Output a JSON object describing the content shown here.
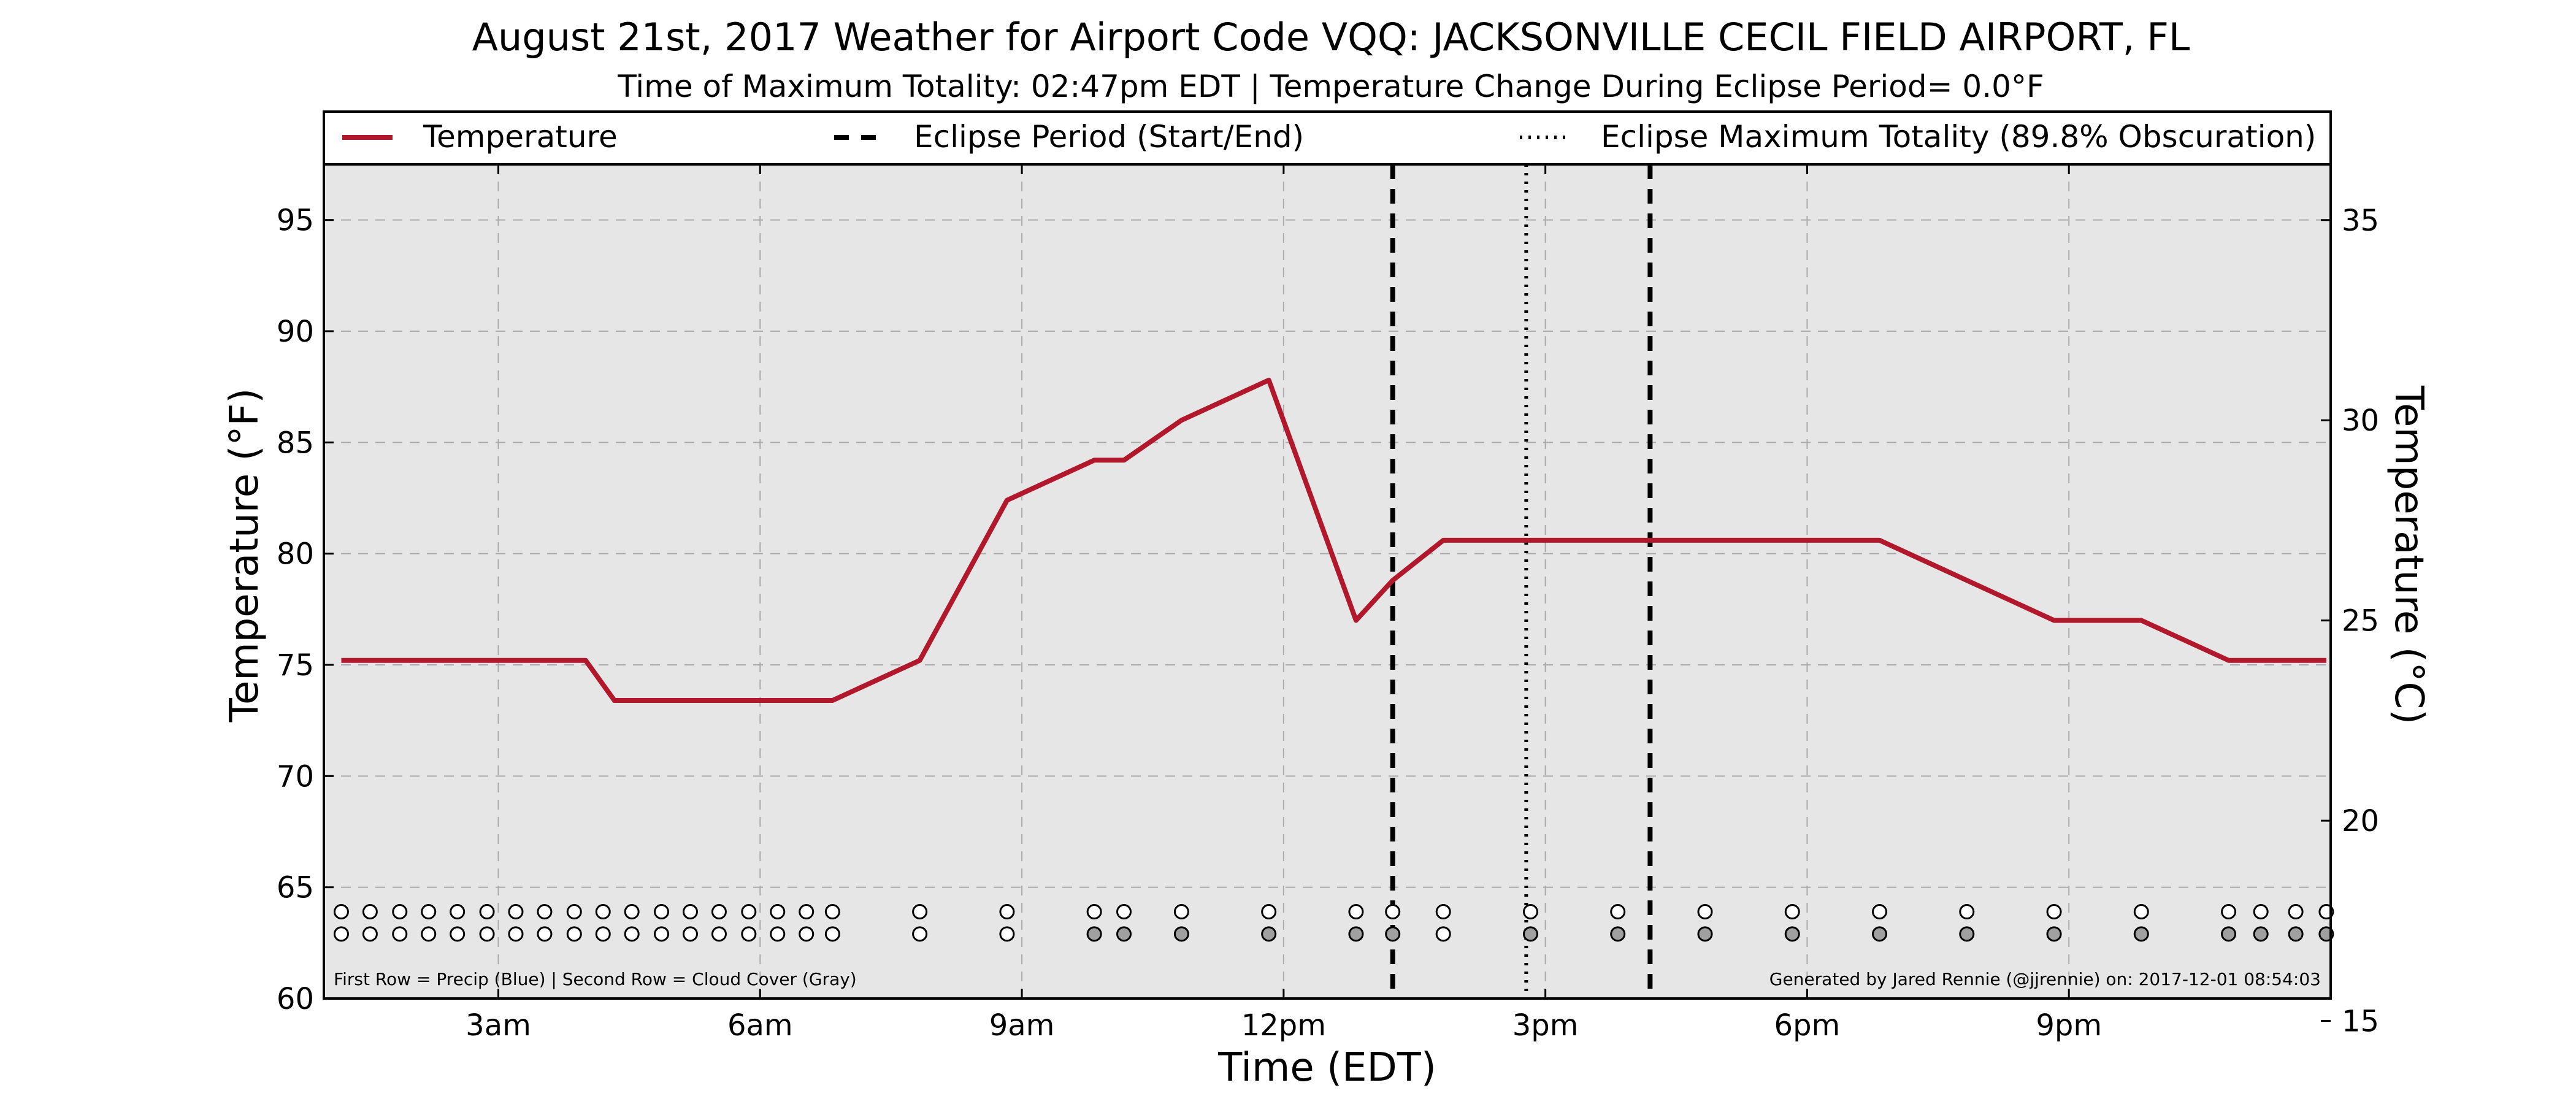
{
  "chart_data": {
    "type": "line",
    "title": "August 21st, 2017 Weather for Airport Code VQQ: JACKSONVILLE CECIL FIELD AIRPORT, FL",
    "subtitle": "Time of Maximum Totality: 02:47pm EDT | Temperature Change During Eclipse Period= 0.0°F",
    "xlabel": "Time (EDT)",
    "ylabel": "Temperature (°F)",
    "ylabel_right": "Temperature (°C)",
    "xlim": [
      1.0,
      24.0
    ],
    "ylim": [
      60,
      97.5
    ],
    "ylim_right": [
      15.56,
      36.39
    ],
    "x_ticks": [
      {
        "value": 3,
        "label": "3am"
      },
      {
        "value": 6,
        "label": "6am"
      },
      {
        "value": 9,
        "label": "9am"
      },
      {
        "value": 12,
        "label": "12pm"
      },
      {
        "value": 15,
        "label": "3pm"
      },
      {
        "value": 18,
        "label": "6pm"
      },
      {
        "value": 21,
        "label": "9pm"
      }
    ],
    "y_ticks": [
      60,
      65,
      70,
      75,
      80,
      85,
      90,
      95
    ],
    "y_ticks_right": [
      15,
      20,
      25,
      30,
      35
    ],
    "grid": true,
    "legend": {
      "placement": "top",
      "entries": [
        {
          "label": "Temperature",
          "style": "solid"
        },
        {
          "label": "Eclipse Period (Start/End)",
          "style": "dashed"
        },
        {
          "label": "Eclipse Maximum Totality (89.8% Obscuration)",
          "style": "dotted"
        }
      ]
    },
    "series": [
      {
        "name": "Temperature",
        "color": "#b2182b",
        "points": [
          [
            1.2,
            75.2
          ],
          [
            4.0,
            75.2
          ],
          [
            4.33,
            73.4
          ],
          [
            6.83,
            73.4
          ],
          [
            7.83,
            75.2
          ],
          [
            8.83,
            82.4
          ],
          [
            9.83,
            84.2
          ],
          [
            10.17,
            84.2
          ],
          [
            10.83,
            86.0
          ],
          [
            11.83,
            87.8
          ],
          [
            12.83,
            77.0
          ],
          [
            13.25,
            78.8
          ],
          [
            13.83,
            80.6
          ],
          [
            14.83,
            80.6
          ],
          [
            15.83,
            80.6
          ],
          [
            16.83,
            80.6
          ],
          [
            17.83,
            80.6
          ],
          [
            18.83,
            80.6
          ],
          [
            19.83,
            78.8
          ],
          [
            20.83,
            77.0
          ],
          [
            21.83,
            77.0
          ],
          [
            22.83,
            75.2
          ],
          [
            23.2,
            75.2
          ],
          [
            23.6,
            75.2
          ],
          [
            23.95,
            75.2
          ]
        ]
      }
    ],
    "eclipse_period": [
      13.25,
      16.2
    ],
    "eclipse_max": 14.78,
    "marker_colors": {
      "clear": "#ffffff",
      "cloud": "#a0a0a0",
      "edge": "#000000"
    },
    "precip_row": {
      "y": 63.9,
      "x": [
        1.2,
        1.53,
        1.87,
        2.2,
        2.53,
        2.87,
        3.2,
        3.53,
        3.87,
        4.2,
        4.53,
        4.87,
        5.2,
        5.53,
        5.87,
        6.2,
        6.53,
        6.83,
        7.83,
        8.83,
        9.83,
        10.17,
        10.83,
        11.83,
        12.83,
        13.25,
        13.83,
        14.83,
        15.83,
        16.83,
        17.83,
        18.83,
        19.83,
        20.83,
        21.83,
        22.83,
        23.2,
        23.6,
        23.95
      ],
      "values": [
        "clear",
        "clear",
        "clear",
        "clear",
        "clear",
        "clear",
        "clear",
        "clear",
        "clear",
        "clear",
        "clear",
        "clear",
        "clear",
        "clear",
        "clear",
        "clear",
        "clear",
        "clear",
        "clear",
        "clear",
        "clear",
        "clear",
        "clear",
        "clear",
        "clear",
        "clear",
        "clear",
        "clear",
        "clear",
        "clear",
        "clear",
        "clear",
        "clear",
        "clear",
        "clear",
        "clear",
        "clear",
        "clear",
        "clear"
      ]
    },
    "cloud_row": {
      "y": 62.9,
      "x": [
        1.2,
        1.53,
        1.87,
        2.2,
        2.53,
        2.87,
        3.2,
        3.53,
        3.87,
        4.2,
        4.53,
        4.87,
        5.2,
        5.53,
        5.87,
        6.2,
        6.53,
        6.83,
        7.83,
        8.83,
        9.83,
        10.17,
        10.83,
        11.83,
        12.83,
        13.25,
        13.83,
        14.83,
        15.83,
        16.83,
        17.83,
        18.83,
        19.83,
        20.83,
        21.83,
        22.83,
        23.2,
        23.6,
        23.95
      ],
      "values": [
        "clear",
        "clear",
        "clear",
        "clear",
        "clear",
        "clear",
        "clear",
        "clear",
        "clear",
        "clear",
        "clear",
        "clear",
        "clear",
        "clear",
        "clear",
        "clear",
        "clear",
        "clear",
        "clear",
        "clear",
        "cloud",
        "cloud",
        "cloud",
        "cloud",
        "cloud",
        "cloud",
        "clear",
        "cloud",
        "cloud",
        "cloud",
        "cloud",
        "cloud",
        "cloud",
        "cloud",
        "cloud",
        "cloud",
        "cloud",
        "cloud",
        "cloud"
      ]
    },
    "footnote_left": "First Row = Precip (Blue) | Second Row = Cloud Cover (Gray)",
    "footnote_right": "Generated by Jared Rennie (@jjrennie) on: 2017-12-01 08:54:03"
  }
}
